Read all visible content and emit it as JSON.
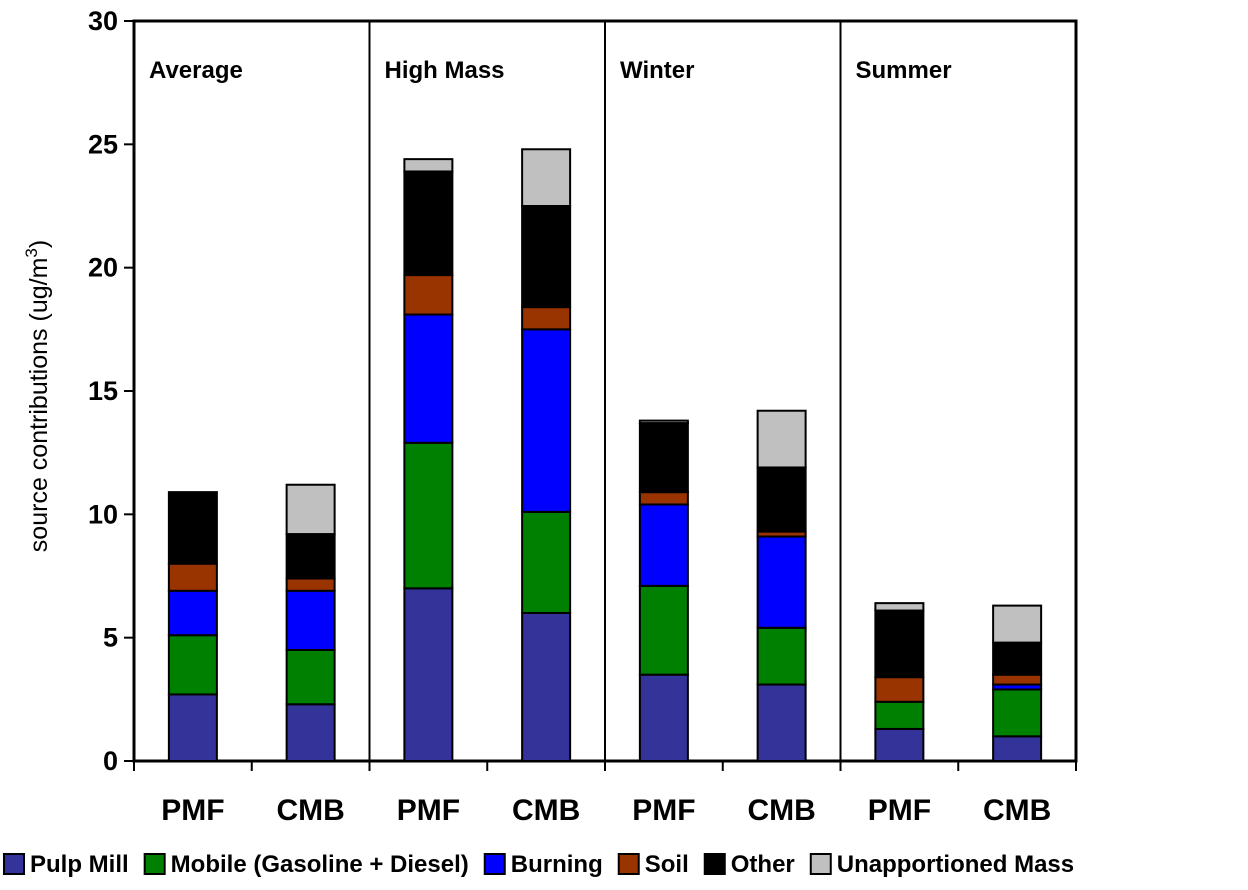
{
  "chart_data": {
    "type": "bar",
    "stacked": true,
    "ylabel": "source contributions (ug/m",
    "ylabel_superscript": "3",
    "ylabel_suffix": ")",
    "ylim": [
      0,
      30
    ],
    "yticks": [
      "0",
      "5",
      "10",
      "15",
      "20",
      "25",
      "30"
    ],
    "panels": [
      "Average",
      "High Mass",
      "Winter",
      "Summer"
    ],
    "categories": [
      "PMF",
      "CMB",
      "PMF",
      "CMB",
      "PMF",
      "CMB",
      "PMF",
      "CMB"
    ],
    "series": [
      {
        "name": "Pulp Mill",
        "color": "#333399",
        "values": [
          2.7,
          2.3,
          7.0,
          6.0,
          3.5,
          3.1,
          1.3,
          1.0
        ]
      },
      {
        "name": "Mobile (Gasoline + Diesel)",
        "color": "#008000",
        "values": [
          2.4,
          2.2,
          5.9,
          4.1,
          3.6,
          2.3,
          1.1,
          1.9
        ]
      },
      {
        "name": "Burning",
        "color": "#0000ff",
        "values": [
          1.8,
          2.4,
          5.2,
          7.4,
          3.3,
          3.7,
          0.0,
          0.2
        ]
      },
      {
        "name": "Soil",
        "color": "#993300",
        "values": [
          1.1,
          0.5,
          1.6,
          0.9,
          0.5,
          0.2,
          1.0,
          0.4
        ]
      },
      {
        "name": "Other",
        "color": "#000000",
        "values": [
          2.9,
          1.8,
          4.2,
          4.1,
          2.8,
          2.6,
          2.7,
          1.3
        ]
      },
      {
        "name": "Unapportioned Mass",
        "color": "#c0c0c0",
        "values": [
          0.0,
          2.0,
          0.5,
          2.3,
          0.1,
          2.3,
          0.3,
          1.5
        ]
      }
    ],
    "legend_position": "bottom",
    "grid": false
  }
}
